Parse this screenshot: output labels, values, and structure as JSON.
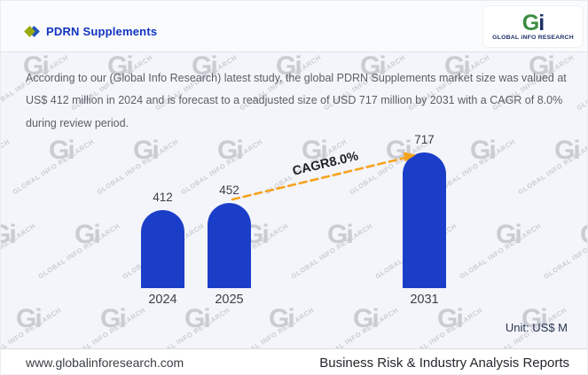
{
  "header": {
    "title": "PDRN Supplements",
    "logo": {
      "g": "G",
      "i": "i",
      "caption": "GLOBAL iNFO RESEARCH"
    }
  },
  "description": "According to our (Global Info Research) latest study, the global PDRN Supplements market size was valued at US$ 412 million in 2024 and is forecast to a readjusted size of USD 717 million by 2031 with a CAGR of 8.0% during review period.",
  "chart_data": {
    "type": "bar",
    "categories": [
      "2024",
      "2025",
      "2031"
    ],
    "values": [
      412,
      452,
      717
    ],
    "title": "",
    "xlabel": "",
    "ylabel": "",
    "ylim": [
      0,
      760
    ],
    "unit_label": "Unit: US$ M",
    "bar_color": "#1b3ec9",
    "annotation": {
      "label": "CAGR8.0%",
      "from_category": "2025",
      "to_category": "2031",
      "arrow_color": "#f7a21d",
      "arrow_style": "dashed"
    },
    "grid": false,
    "legend": false
  },
  "watermark": {
    "monogram": "Gi",
    "text": "GLOBAL INFO RESEARCH"
  },
  "footer": {
    "website": "www.globalinforesearch.com",
    "tagline": "Business Risk & Industry Analysis Reports"
  },
  "colors": {
    "bar_blue": "#1b3ec9",
    "arrow_orange": "#f7a21d",
    "title_blue": "#1134c0",
    "logo_green": "#3c8c42",
    "logo_navy": "#1c2f68",
    "content_bg": "#f3f5fa"
  }
}
